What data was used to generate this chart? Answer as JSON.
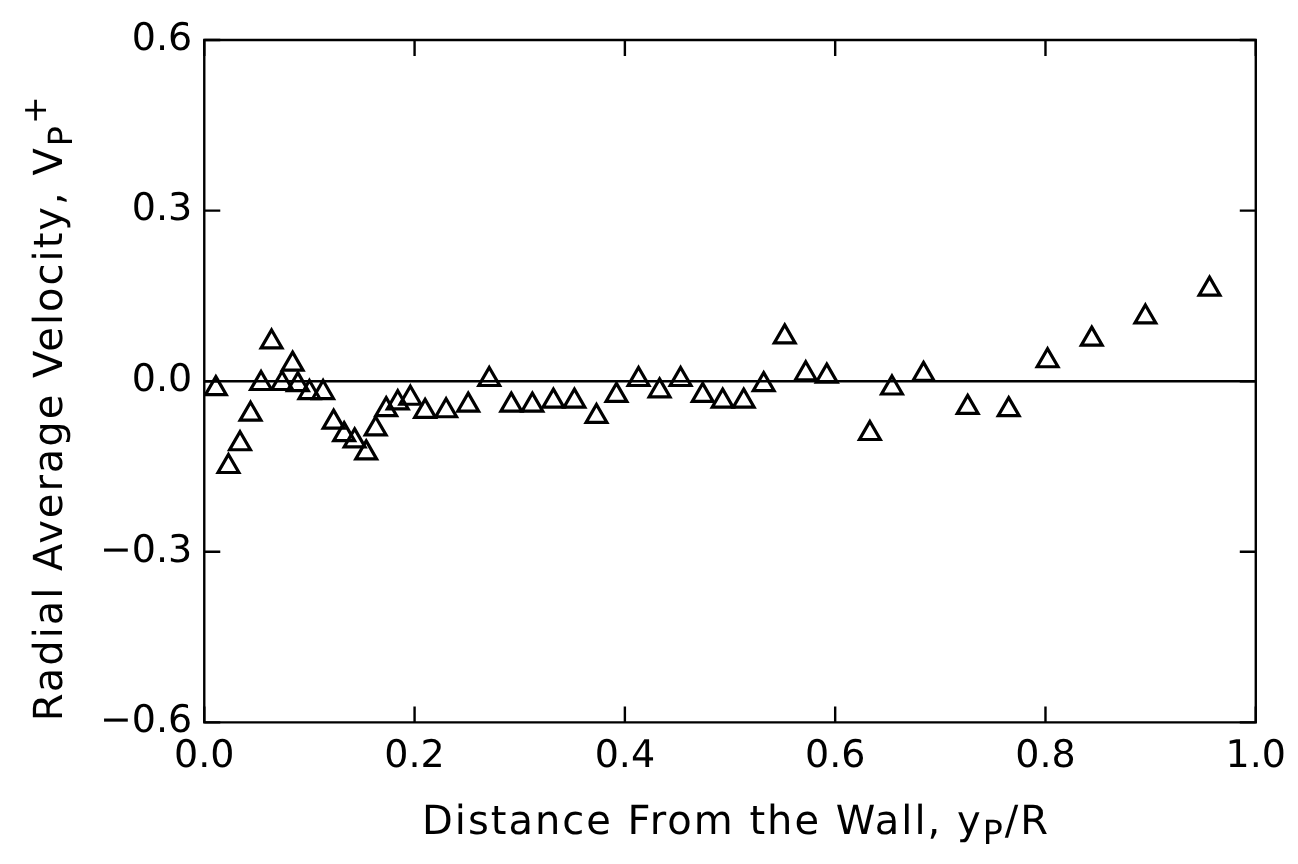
{
  "chart_data": {
    "type": "scatter",
    "xlabel": "Distance From the Wall, y$_{P}$/R",
    "ylabel": "Radial Average Velocity, V$_{P}$$^{+}$",
    "x": [
      0.011,
      0.023,
      0.034,
      0.044,
      0.054,
      0.064,
      0.074,
      0.084,
      0.089,
      0.1,
      0.113,
      0.123,
      0.133,
      0.143,
      0.154,
      0.163,
      0.173,
      0.184,
      0.196,
      0.21,
      0.23,
      0.251,
      0.271,
      0.292,
      0.312,
      0.332,
      0.352,
      0.373,
      0.392,
      0.413,
      0.433,
      0.453,
      0.474,
      0.493,
      0.513,
      0.532,
      0.552,
      0.572,
      0.592,
      0.633,
      0.654,
      0.684,
      0.726,
      0.765,
      0.802,
      0.844,
      0.895,
      0.956
    ],
    "series": [
      {
        "color": "#000000",
        "values": [
          -0.013,
          -0.15,
          -0.11,
          -0.058,
          -0.004,
          0.069,
          -0.004,
          0.03,
          -0.006,
          -0.02,
          -0.02,
          -0.072,
          -0.094,
          -0.105,
          -0.126,
          -0.084,
          -0.05,
          -0.038,
          -0.03,
          -0.053,
          -0.052,
          -0.042,
          0.003,
          -0.042,
          -0.042,
          -0.035,
          -0.035,
          -0.062,
          -0.025,
          0.003,
          -0.017,
          0.003,
          -0.025,
          -0.035,
          -0.035,
          -0.006,
          0.078,
          0.013,
          0.009,
          -0.092,
          -0.012,
          0.012,
          -0.046,
          -0.05,
          0.036,
          0.074,
          0.113,
          0.162
        ]
      }
    ],
    "xlim": [
      0,
      1
    ],
    "ylim": [
      -0.6,
      0.6
    ],
    "xticks": [
      {
        "value": 0,
        "label": "0.0"
      },
      0.2,
      0.4,
      0.6,
      0.8,
      {
        "value": 1,
        "label": "1.0"
      }
    ],
    "yticks": [
      {
        "value": -0.6,
        "label": "−0.6"
      },
      {
        "value": -0.3,
        "label": "−0.3"
      },
      {
        "value": 0,
        "label": "0.0"
      },
      0.3,
      0.6
    ],
    "ref_lines": [
      {
        "axis": "y",
        "value": 0,
        "color": "#000000"
      }
    ],
    "marker": "triangle",
    "grid": false,
    "legend": false
  }
}
